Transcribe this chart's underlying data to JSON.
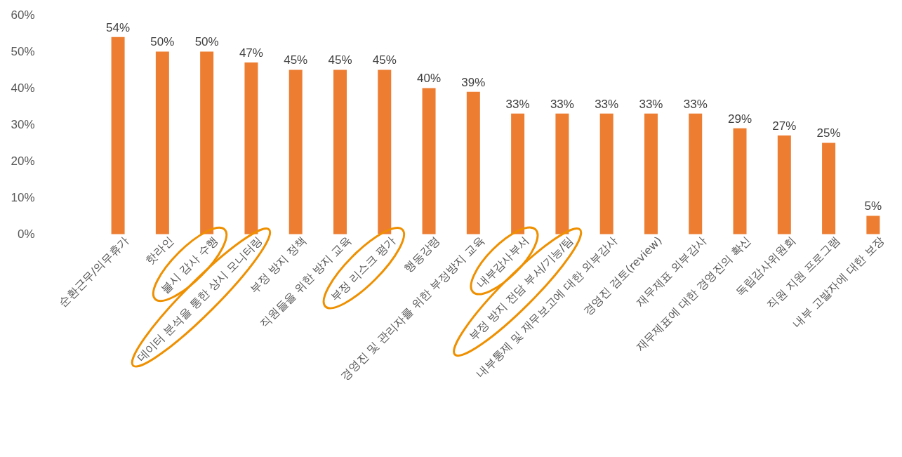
{
  "chart_data": {
    "type": "bar",
    "categories": [
      "순환근무/의무휴가",
      "핫라인",
      "불시 감사 수행",
      "데이터 분석을 통한 상시 모니터링",
      "부정 방지 정책",
      "직원들을 위한 방지 교육",
      "부정 리스크 평가",
      "행동강령",
      "경영진 및 관리자를 위한 부정방지 교육",
      "내부감사부서",
      "부정 방지 전담 부서/기능/팀",
      "내부통제 및 재무보고에 대한 외부감사",
      "경영진 검토(review)",
      "재무제표 외부감사",
      "재무제표에 대한 경영진의 확신",
      "독립감사위원회",
      "직원 지원 프로그램",
      "내부 고발자에 대한 보장"
    ],
    "values": [
      54,
      50,
      50,
      47,
      45,
      45,
      45,
      40,
      39,
      33,
      33,
      33,
      33,
      33,
      29,
      27,
      25,
      5
    ],
    "value_labels": [
      "54%",
      "50%",
      "50%",
      "47%",
      "45%",
      "45%",
      "45%",
      "40%",
      "39%",
      "33%",
      "33%",
      "33%",
      "33%",
      "33%",
      "29%",
      "27%",
      "25%",
      "5%"
    ],
    "color": "#ed7d31",
    "ylim": [
      0,
      60
    ],
    "yticks": [
      {
        "value": 0,
        "label": "0%"
      },
      {
        "value": 10,
        "label": "10%"
      },
      {
        "value": 20,
        "label": "20%"
      },
      {
        "value": 30,
        "label": "30%"
      },
      {
        "value": 40,
        "label": "40%"
      },
      {
        "value": 50,
        "label": "50%"
      },
      {
        "value": 60,
        "label": "60%"
      }
    ],
    "grid": false
  }
}
